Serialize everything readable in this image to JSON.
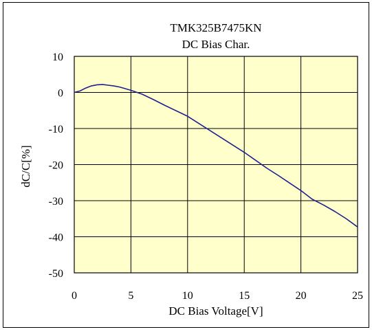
{
  "chart_data": {
    "type": "line",
    "title": "TMK325B7475KN",
    "subtitle": "DC Bias Char.",
    "xlabel": "DC Bias Voltage[V]",
    "ylabel": "dC/C[%]",
    "xlim": [
      0,
      25
    ],
    "ylim": [
      -50,
      10
    ],
    "xticks": [
      0,
      5,
      10,
      15,
      20,
      25
    ],
    "yticks": [
      10,
      0,
      -10,
      -20,
      -30,
      -40,
      -50
    ],
    "grid": true,
    "plot_background": "#FFFFCC",
    "line_color": "#1F1F8F",
    "series": [
      {
        "x": [
          0,
          0.5,
          1,
          1.5,
          2,
          2.5,
          3,
          3.5,
          4,
          5,
          6,
          7,
          8,
          9,
          10,
          11,
          12,
          13,
          14,
          15,
          16,
          17,
          18,
          19,
          20,
          21,
          22,
          23,
          24,
          25
        ],
        "y": [
          0,
          0.4,
          1.2,
          1.8,
          2.1,
          2.2,
          2.0,
          1.8,
          1.5,
          0.6,
          -0.5,
          -2.0,
          -3.6,
          -5.1,
          -6.6,
          -8.6,
          -10.6,
          -12.6,
          -14.6,
          -16.6,
          -18.8,
          -21.0,
          -23.0,
          -25.1,
          -27.2,
          -29.6,
          -31.2,
          -33.0,
          -35.0,
          -37.3
        ]
      }
    ]
  }
}
